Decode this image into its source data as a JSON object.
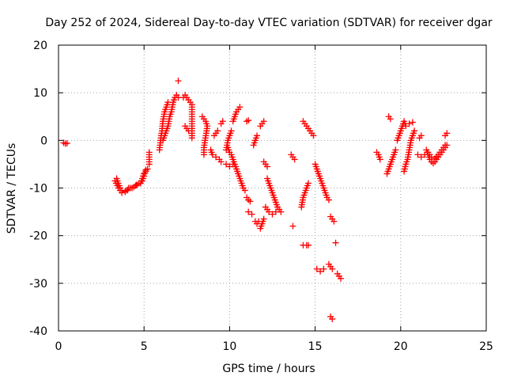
{
  "chart_data": {
    "type": "scatter",
    "title": "Day 252 of 2024, Sidereal Day-to-day VTEC variation (SDTVAR) for receiver dgar",
    "xlabel": "GPS time / hours",
    "ylabel": "SDTVAR / TECUs",
    "xlim": [
      0,
      25
    ],
    "ylim": [
      -40,
      20
    ],
    "xticks": [
      0,
      5,
      10,
      15,
      20,
      25
    ],
    "yticks": [
      -40,
      -30,
      -20,
      -10,
      0,
      10,
      20
    ],
    "grid": true,
    "marker": "+",
    "color": "#ff0000",
    "series": [
      {
        "name": "SDTVAR",
        "segments": [
          [
            [
              0.3,
              -0.5
            ],
            [
              0.4,
              -0.7
            ],
            [
              0.5,
              -0.6
            ]
          ],
          [
            [
              3.4,
              -8
            ],
            [
              3.5,
              -9
            ],
            [
              3.6,
              -10
            ],
            [
              3.7,
              -10.5
            ],
            [
              3.9,
              -10.8
            ],
            [
              4.0,
              -10.5
            ],
            [
              4.1,
              -10.0
            ],
            [
              4.3,
              -10
            ],
            [
              4.5,
              -9.5
            ],
            [
              4.6,
              -9.3
            ],
            [
              4.8,
              -9
            ],
            [
              4.9,
              -8
            ],
            [
              5.0,
              -7
            ],
            [
              5.1,
              -6.5
            ],
            [
              5.2,
              -6
            ]
          ],
          [
            [
              3.3,
              -8.5
            ],
            [
              3.5,
              -10
            ],
            [
              3.7,
              -11
            ],
            [
              3.9,
              -10.7
            ],
            [
              4.2,
              -10
            ],
            [
              4.4,
              -9.8
            ],
            [
              4.7,
              -9.0
            ],
            [
              4.9,
              -8.5
            ],
            [
              5.0,
              -7.5
            ],
            [
              5.1,
              -6.2
            ]
          ],
          [
            [
              5.3,
              -2.5
            ],
            [
              5.3,
              -4.5
            ],
            [
              5.3,
              -5
            ]
          ],
          [
            [
              5.9,
              -2
            ],
            [
              6.0,
              1
            ],
            [
              6.05,
              2
            ],
            [
              6.1,
              4
            ],
            [
              6.15,
              5
            ],
            [
              6.2,
              6
            ],
            [
              6.3,
              7
            ],
            [
              6.4,
              8
            ]
          ],
          [
            [
              6.1,
              0
            ],
            [
              6.2,
              1
            ],
            [
              6.3,
              2
            ],
            [
              6.4,
              3
            ],
            [
              6.5,
              5
            ],
            [
              6.6,
              6
            ],
            [
              6.7,
              8
            ],
            [
              6.8,
              9
            ],
            [
              6.9,
              9.5
            ],
            [
              7.0,
              9
            ]
          ],
          [
            [
              7.0,
              12.5
            ]
          ],
          [
            [
              7.4,
              3
            ],
            [
              7.5,
              2.5
            ],
            [
              7.6,
              2
            ]
          ],
          [
            [
              7.3,
              9
            ],
            [
              7.4,
              9.5
            ],
            [
              7.5,
              9
            ],
            [
              7.6,
              8.5
            ],
            [
              7.7,
              8
            ]
          ],
          [
            [
              7.8,
              7.5
            ],
            [
              7.8,
              6.5
            ],
            [
              7.8,
              0.5
            ]
          ],
          [
            [
              8.4,
              5
            ],
            [
              8.5,
              4.5
            ],
            [
              8.6,
              4
            ],
            [
              8.7,
              3
            ],
            [
              8.5,
              -1.5
            ],
            [
              8.5,
              -3
            ]
          ],
          [
            [
              8.9,
              -2
            ],
            [
              9.0,
              -3
            ],
            [
              9.2,
              -3.5
            ],
            [
              9.4,
              -4
            ],
            [
              9.5,
              -4.5
            ]
          ],
          [
            [
              9.1,
              1
            ],
            [
              9.2,
              1.5
            ],
            [
              9.3,
              2
            ]
          ],
          [
            [
              9.5,
              3.5
            ],
            [
              9.6,
              4
            ]
          ],
          [
            [
              9.8,
              -2
            ],
            [
              9.9,
              0
            ],
            [
              10.0,
              1
            ],
            [
              10.1,
              2
            ]
          ],
          [
            [
              10.2,
              4
            ],
            [
              10.3,
              5
            ],
            [
              10.4,
              6
            ],
            [
              10.5,
              6.5
            ],
            [
              10.6,
              7
            ]
          ],
          [
            [
              9.9,
              -1.5
            ],
            [
              10.0,
              -2.5
            ],
            [
              10.1,
              -3
            ],
            [
              10.2,
              -4
            ],
            [
              10.3,
              -5
            ],
            [
              10.4,
              -6
            ],
            [
              10.5,
              -7
            ],
            [
              10.6,
              -8
            ],
            [
              10.7,
              -9
            ],
            [
              10.8,
              -10
            ],
            [
              10.9,
              -10.5
            ]
          ],
          [
            [
              9.8,
              -5
            ],
            [
              10.0,
              -5.5
            ],
            [
              10.2,
              -5
            ]
          ],
          [
            [
              11.0,
              4
            ],
            [
              11.1,
              4.2
            ]
          ],
          [
            [
              11.0,
              -12
            ],
            [
              11.1,
              -12.5
            ],
            [
              11.2,
              -12.8
            ]
          ],
          [
            [
              11.1,
              -15
            ],
            [
              11.3,
              -15.5
            ]
          ],
          [
            [
              11.4,
              -1
            ],
            [
              11.5,
              0
            ],
            [
              11.6,
              1
            ]
          ],
          [
            [
              11.5,
              -17
            ],
            [
              11.6,
              -17.5
            ],
            [
              11.7,
              -17
            ]
          ],
          [
            [
              11.8,
              -18.5
            ],
            [
              11.9,
              -17.5
            ],
            [
              12.0,
              -16.5
            ]
          ],
          [
            [
              11.8,
              3
            ],
            [
              11.9,
              3.5
            ],
            [
              12.0,
              4
            ]
          ],
          [
            [
              12.0,
              -4.5
            ],
            [
              12.1,
              -5
            ],
            [
              12.2,
              -5.5
            ]
          ],
          [
            [
              12.2,
              -8
            ],
            [
              12.3,
              -9
            ],
            [
              12.4,
              -10
            ],
            [
              12.5,
              -11
            ],
            [
              12.6,
              -12
            ],
            [
              12.7,
              -13
            ],
            [
              12.8,
              -14
            ],
            [
              12.9,
              -14.5
            ],
            [
              13.0,
              -15
            ]
          ],
          [
            [
              12.1,
              -14
            ],
            [
              12.3,
              -15
            ],
            [
              12.5,
              -15.5
            ],
            [
              12.7,
              -15
            ]
          ],
          [
            [
              13.6,
              -3
            ],
            [
              13.7,
              -3.5
            ],
            [
              13.8,
              -4
            ]
          ],
          [
            [
              13.7,
              -18
            ]
          ],
          [
            [
              14.2,
              -14
            ],
            [
              14.3,
              -12
            ],
            [
              14.4,
              -11
            ],
            [
              14.5,
              -10
            ],
            [
              14.6,
              -9
            ]
          ],
          [
            [
              14.3,
              4
            ],
            [
              14.4,
              3.5
            ],
            [
              14.5,
              3
            ],
            [
              14.6,
              2.5
            ],
            [
              14.7,
              2
            ],
            [
              14.8,
              1.5
            ],
            [
              14.9,
              1
            ]
          ],
          [
            [
              14.3,
              -22
            ],
            [
              14.5,
              -22
            ],
            [
              14.6,
              -22
            ]
          ],
          [
            [
              15.0,
              -5
            ],
            [
              15.1,
              -6
            ],
            [
              15.2,
              -7
            ],
            [
              15.3,
              -8
            ],
            [
              15.4,
              -9
            ],
            [
              15.5,
              -10
            ],
            [
              15.6,
              -11
            ],
            [
              15.7,
              -12
            ],
            [
              15.8,
              -12.5
            ]
          ],
          [
            [
              15.1,
              -27
            ],
            [
              15.3,
              -27.5
            ],
            [
              15.5,
              -27
            ]
          ],
          [
            [
              15.8,
              -26
            ],
            [
              15.9,
              -26.5
            ],
            [
              16.0,
              -27
            ]
          ],
          [
            [
              15.9,
              -16
            ],
            [
              16.0,
              -16.5
            ],
            [
              16.1,
              -17
            ]
          ],
          [
            [
              15.9,
              -37
            ],
            [
              16.0,
              -37.5
            ]
          ],
          [
            [
              16.2,
              -21.5
            ]
          ],
          [
            [
              16.3,
              -28
            ],
            [
              16.5,
              -29
            ]
          ],
          [
            [
              18.6,
              -2.5
            ],
            [
              18.7,
              -3
            ],
            [
              18.8,
              -4
            ]
          ],
          [
            [
              19.2,
              -7
            ],
            [
              19.3,
              -6
            ],
            [
              19.4,
              -5
            ],
            [
              19.5,
              -4
            ],
            [
              19.6,
              -3
            ],
            [
              19.7,
              -2
            ]
          ],
          [
            [
              19.3,
              5
            ],
            [
              19.4,
              4.5
            ]
          ],
          [
            [
              19.8,
              0
            ],
            [
              19.9,
              1
            ],
            [
              20.0,
              2
            ],
            [
              20.1,
              3
            ],
            [
              20.2,
              4
            ],
            [
              20.3,
              3
            ]
          ],
          [
            [
              20.2,
              -6.5
            ],
            [
              20.3,
              -5
            ],
            [
              20.4,
              -4
            ],
            [
              20.5,
              -2
            ],
            [
              20.6,
              0
            ],
            [
              20.7,
              1
            ],
            [
              20.8,
              2
            ]
          ],
          [
            [
              20.5,
              3.5
            ],
            [
              20.7,
              3.8
            ]
          ],
          [
            [
              21.0,
              -3
            ],
            [
              21.2,
              -3.5
            ],
            [
              21.4,
              -3
            ]
          ],
          [
            [
              21.1,
              0.5
            ],
            [
              21.2,
              1
            ]
          ],
          [
            [
              21.5,
              -2
            ],
            [
              21.6,
              -3
            ],
            [
              21.7,
              -4
            ],
            [
              21.8,
              -4.5
            ],
            [
              21.9,
              -4.8
            ],
            [
              22.0,
              -4.5
            ],
            [
              22.1,
              -4
            ],
            [
              22.2,
              -3.5
            ],
            [
              22.3,
              -3
            ],
            [
              22.4,
              -2.5
            ],
            [
              22.5,
              -2
            ],
            [
              22.6,
              -1.5
            ],
            [
              22.7,
              -1
            ]
          ],
          [
            [
              21.6,
              -2.5
            ],
            [
              21.8,
              -3.5
            ],
            [
              22.0,
              -3.8
            ],
            [
              22.2,
              -3
            ],
            [
              22.4,
              -2
            ],
            [
              22.6,
              -1
            ]
          ],
          [
            [
              22.6,
              1
            ],
            [
              22.7,
              1.5
            ]
          ]
        ]
      }
    ]
  }
}
